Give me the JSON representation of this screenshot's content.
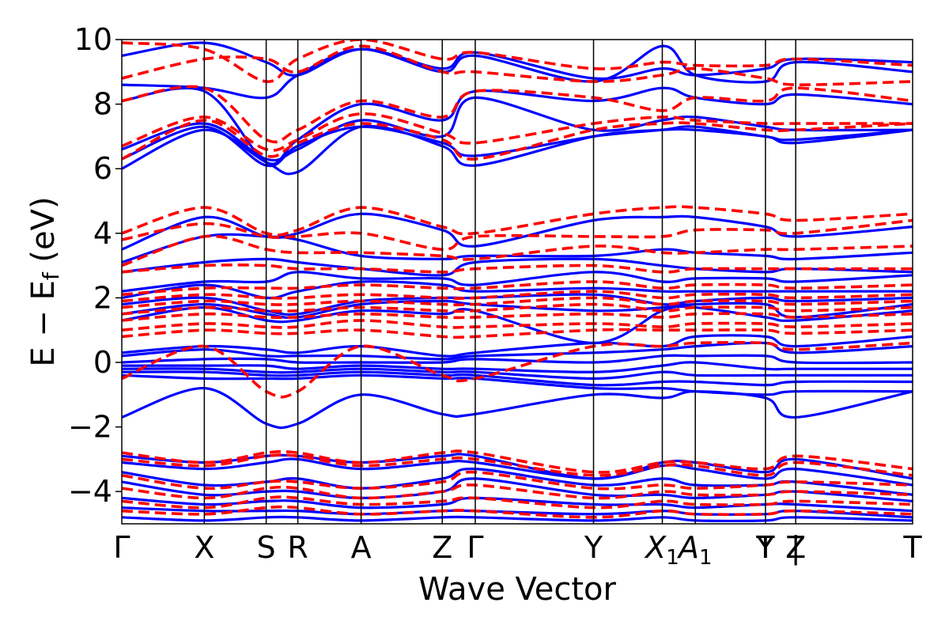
{
  "chart_data": {
    "type": "line",
    "title": "",
    "xlabel": "Wave Vector",
    "ylabel": "E − E",
    "ylabel_sub": "f",
    "ylabel_unit": " (eV)",
    "ylim": [
      -5,
      10
    ],
    "xlim": [
      0,
      5.75
    ],
    "yticks": [
      -4,
      -2,
      0,
      2,
      4,
      6,
      8,
      10
    ],
    "ytick_labels": [
      "−4",
      "−2",
      "0",
      "2",
      "4",
      "6",
      "8",
      "10"
    ],
    "grid": false,
    "legend": "none",
    "kpoints": [
      {
        "label": "Γ",
        "x": 0.0
      },
      {
        "label": "X",
        "x": 0.6
      },
      {
        "label": "S",
        "x": 1.05
      },
      {
        "label": "R",
        "x": 1.28
      },
      {
        "label": "A",
        "x": 1.74
      },
      {
        "label": "Z",
        "x": 2.33
      },
      {
        "label": "Γ",
        "x": 2.57
      },
      {
        "label": "Y",
        "x": 3.43
      },
      {
        "label": "X",
        "sub": "1",
        "x": 3.93
      },
      {
        "label": "A",
        "sub": "1",
        "x": 4.17
      },
      {
        "label": "T",
        "x": 4.68
      },
      {
        "label": "Y",
        "x": 4.68
      },
      {
        "label": "|",
        "x": 4.9
      },
      {
        "label": "Z",
        "x": 4.9
      },
      {
        "label": "T",
        "x": 5.75
      }
    ],
    "series_styles": [
      {
        "id": "solid",
        "color": "#0000ff",
        "dash": "none"
      },
      {
        "id": "dashed",
        "color": "#ff0000",
        "dash": "14 7"
      }
    ],
    "bands_solid": [
      [
        9.5,
        9.9,
        9.3,
        8.9,
        9.7,
        9.1,
        9.6,
        8.8,
        9.1,
        8.9,
        9.1,
        9.4,
        9.3
      ],
      [
        8.6,
        8.5,
        8.2,
        8.9,
        9.7,
        9.0,
        9.5,
        8.7,
        9.8,
        8.9,
        8.7,
        9.3,
        9.0
      ],
      [
        8.1,
        8.4,
        6.2,
        6.9,
        8.0,
        7.5,
        8.4,
        8.1,
        8.5,
        8.2,
        8.0,
        8.3,
        8.0
      ],
      [
        6.6,
        7.4,
        6.3,
        6.6,
        7.5,
        7.0,
        8.2,
        7.2,
        7.5,
        7.6,
        7.3,
        7.2,
        7.2
      ],
      [
        6.3,
        7.3,
        6.1,
        6.7,
        7.3,
        6.8,
        6.4,
        7.0,
        7.2,
        7.3,
        7.0,
        6.9,
        7.2
      ],
      [
        6.0,
        7.2,
        6.2,
        5.9,
        7.3,
        6.7,
        6.1,
        7.0,
        7.2,
        7.2,
        7.0,
        6.8,
        7.2
      ],
      [
        3.5,
        4.5,
        3.9,
        4.0,
        4.6,
        4.1,
        3.6,
        4.4,
        4.5,
        4.5,
        4.2,
        3.9,
        4.2
      ],
      [
        3.1,
        3.9,
        3.9,
        3.8,
        3.3,
        3.2,
        3.3,
        3.3,
        3.5,
        3.4,
        3.3,
        3.2,
        3.4
      ],
      [
        2.8,
        3.1,
        3.2,
        3.1,
        2.9,
        2.7,
        3.1,
        3.2,
        3.0,
        2.9,
        2.8,
        2.9,
        2.8
      ],
      [
        2.2,
        2.5,
        2.5,
        2.8,
        2.6,
        2.6,
        2.4,
        2.8,
        2.5,
        2.6,
        2.6,
        2.5,
        2.7
      ],
      [
        2.0,
        2.4,
        2.0,
        2.2,
        2.5,
        2.4,
        2.2,
        2.3,
        2.2,
        2.2,
        2.2,
        2.2,
        2.2
      ],
      [
        1.8,
        2.0,
        1.6,
        1.5,
        1.9,
        2.0,
        2.0,
        2.1,
        1.8,
        1.9,
        2.0,
        1.9,
        2.0
      ],
      [
        1.5,
        1.8,
        1.5,
        1.4,
        1.8,
        1.9,
        1.8,
        1.6,
        1.7,
        1.8,
        1.8,
        1.4,
        1.8
      ],
      [
        1.3,
        1.7,
        1.3,
        1.3,
        1.6,
        1.5,
        1.6,
        0.6,
        1.6,
        1.7,
        1.4,
        1.3,
        1.6
      ],
      [
        0.3,
        0.5,
        0.4,
        0.3,
        0.5,
        0.2,
        0.3,
        0.6,
        0.5,
        0.8,
        0.8,
        0.5,
        0.8
      ],
      [
        0.2,
        0.4,
        0.2,
        0.2,
        0.2,
        0.1,
        0.2,
        0.3,
        0.4,
        0.5,
        0.6,
        0.3,
        0.5
      ],
      [
        0.0,
        0.1,
        0.1,
        0.0,
        0.0,
        0.0,
        0.1,
        0.0,
        0.2,
        0.2,
        0.2,
        0.0,
        0.0
      ],
      [
        -0.1,
        -0.1,
        -0.1,
        -0.2,
        -0.1,
        -0.2,
        -0.2,
        -0.3,
        -0.1,
        0.0,
        -0.2,
        -0.2,
        -0.2
      ],
      [
        -0.2,
        -0.2,
        -0.3,
        -0.3,
        -0.2,
        -0.3,
        -0.3,
        -0.5,
        -0.3,
        -0.4,
        -0.4,
        -0.4,
        -0.4
      ],
      [
        -0.3,
        -0.3,
        -0.4,
        -0.4,
        -0.3,
        -0.4,
        -0.4,
        -0.7,
        -0.6,
        -0.6,
        -0.7,
        -0.6,
        -0.6
      ],
      [
        -0.4,
        -0.5,
        -0.5,
        -0.5,
        -0.4,
        -0.5,
        -0.5,
        -0.8,
        -0.8,
        -0.9,
        -1.0,
        -0.9,
        -0.9
      ],
      [
        -1.7,
        -0.8,
        -1.9,
        -1.9,
        -1.0,
        -1.6,
        -1.6,
        -1.0,
        -1.1,
        -0.9,
        -1.1,
        -1.7,
        -0.9
      ],
      [
        -2.9,
        -3.1,
        -2.9,
        -2.9,
        -3.1,
        -2.9,
        -2.9,
        -3.6,
        -3.1,
        -3.1,
        -3.4,
        -3.0,
        -3.6
      ],
      [
        -3.1,
        -3.3,
        -3.1,
        -3.0,
        -3.3,
        -3.1,
        -3.1,
        -3.6,
        -3.2,
        -3.3,
        -3.6,
        -3.3,
        -3.8
      ],
      [
        -3.4,
        -3.8,
        -3.7,
        -3.6,
        -3.9,
        -3.6,
        -3.3,
        -3.8,
        -3.6,
        -3.8,
        -3.8,
        -3.7,
        -4.1
      ],
      [
        -3.7,
        -4.1,
        -4.0,
        -4.0,
        -4.2,
        -4.0,
        -3.6,
        -4.1,
        -4.1,
        -4.2,
        -4.1,
        -4.0,
        -4.3
      ],
      [
        -4.2,
        -4.4,
        -4.3,
        -4.3,
        -4.5,
        -4.4,
        -4.2,
        -4.4,
        -4.4,
        -4.5,
        -4.4,
        -4.4,
        -4.6
      ],
      [
        -4.5,
        -4.6,
        -4.6,
        -4.6,
        -4.7,
        -4.6,
        -4.6,
        -4.7,
        -4.6,
        -4.7,
        -4.7,
        -4.6,
        -4.8
      ],
      [
        -4.8,
        -4.9,
        -4.8,
        -4.8,
        -4.9,
        -4.8,
        -4.8,
        -4.9,
        -4.8,
        -4.9,
        -4.9,
        -4.8,
        -4.9
      ]
    ],
    "bands_dashed": [
      [
        9.9,
        9.7,
        8.7,
        9.4,
        10.0,
        9.4,
        9.6,
        9.1,
        9.3,
        9.2,
        9.2,
        9.4,
        9.2
      ],
      [
        8.8,
        9.4,
        9.4,
        9.0,
        9.8,
        9.0,
        9.0,
        8.7,
        8.9,
        9.1,
        8.8,
        8.6,
        8.7
      ],
      [
        8.1,
        8.5,
        6.9,
        7.2,
        8.1,
        7.6,
        8.4,
        8.2,
        7.8,
        8.2,
        8.1,
        8.5,
        8.1
      ],
      [
        6.7,
        7.6,
        6.6,
        6.9,
        7.7,
        7.1,
        6.8,
        7.4,
        7.6,
        7.5,
        7.4,
        7.4,
        7.4
      ],
      [
        6.3,
        7.5,
        6.4,
        6.8,
        7.4,
        6.9,
        6.3,
        7.2,
        7.4,
        7.4,
        7.2,
        7.2,
        7.4
      ],
      [
        4.0,
        4.8,
        4.0,
        4.1,
        4.8,
        4.2,
        4.0,
        4.6,
        4.8,
        4.8,
        4.6,
        4.4,
        4.6
      ],
      [
        3.8,
        4.3,
        3.9,
        3.9,
        4.0,
        3.5,
        3.9,
        3.9,
        3.9,
        4.1,
        4.1,
        4.0,
        4.4
      ],
      [
        3.0,
        3.9,
        3.5,
        3.4,
        3.4,
        3.3,
        3.2,
        3.6,
        3.4,
        3.4,
        3.5,
        3.5,
        3.6
      ],
      [
        2.8,
        3.0,
        3.0,
        2.9,
        2.9,
        2.8,
        2.9,
        3.0,
        2.8,
        2.9,
        2.9,
        2.9,
        2.9
      ],
      [
        2.1,
        2.3,
        2.3,
        2.3,
        2.4,
        2.3,
        2.3,
        2.5,
        2.3,
        2.4,
        2.4,
        2.3,
        2.4
      ],
      [
        1.9,
        2.1,
        2.0,
        2.0,
        2.1,
        2.0,
        2.0,
        2.2,
        2.0,
        2.1,
        2.1,
        2.0,
        2.1
      ],
      [
        1.7,
        1.9,
        1.8,
        1.8,
        1.9,
        1.8,
        1.8,
        2.0,
        1.8,
        1.9,
        1.9,
        1.8,
        1.9
      ],
      [
        1.5,
        1.7,
        1.6,
        1.6,
        1.7,
        1.6,
        1.6,
        1.8,
        1.6,
        1.7,
        1.7,
        1.6,
        1.7
      ],
      [
        1.3,
        1.5,
        1.4,
        1.4,
        1.5,
        1.4,
        1.4,
        1.5,
        1.4,
        1.5,
        1.5,
        1.4,
        1.5
      ],
      [
        1.0,
        1.2,
        1.1,
        1.1,
        1.3,
        1.1,
        1.1,
        1.2,
        1.1,
        1.2,
        1.2,
        1.1,
        1.2
      ],
      [
        0.8,
        1.0,
        0.9,
        0.9,
        1.0,
        0.8,
        0.8,
        1.0,
        1.0,
        1.0,
        1.0,
        0.9,
        1.0
      ],
      [
        -0.5,
        0.5,
        -0.9,
        -0.9,
        0.5,
        -0.4,
        -0.5,
        0.5,
        0.5,
        0.6,
        0.6,
        0.4,
        0.6
      ],
      [
        -2.8,
        -3.1,
        -2.8,
        -2.8,
        -3.1,
        -2.8,
        -2.8,
        -3.4,
        -3.1,
        -3.1,
        -3.3,
        -2.9,
        -3.3
      ],
      [
        -3.0,
        -3.2,
        -2.9,
        -2.9,
        -3.2,
        -3.0,
        -3.0,
        -3.5,
        -3.2,
        -3.2,
        -3.5,
        -3.1,
        -3.5
      ],
      [
        -3.5,
        -3.9,
        -3.7,
        -3.7,
        -3.9,
        -3.7,
        -3.4,
        -3.9,
        -3.8,
        -3.9,
        -3.8,
        -3.7,
        -3.8
      ],
      [
        -3.9,
        -4.2,
        -3.9,
        -3.9,
        -4.2,
        -4.0,
        -3.8,
        -4.2,
        -4.0,
        -4.1,
        -4.1,
        -4.0,
        -4.1
      ],
      [
        -4.3,
        -4.5,
        -4.2,
        -4.2,
        -4.4,
        -4.3,
        -4.2,
        -4.5,
        -4.3,
        -4.4,
        -4.4,
        -4.3,
        -4.4
      ],
      [
        -4.6,
        -4.7,
        -4.5,
        -4.5,
        -4.7,
        -4.6,
        -4.6,
        -4.8,
        -4.6,
        -4.7,
        -4.7,
        -4.6,
        -4.7
      ]
    ]
  }
}
